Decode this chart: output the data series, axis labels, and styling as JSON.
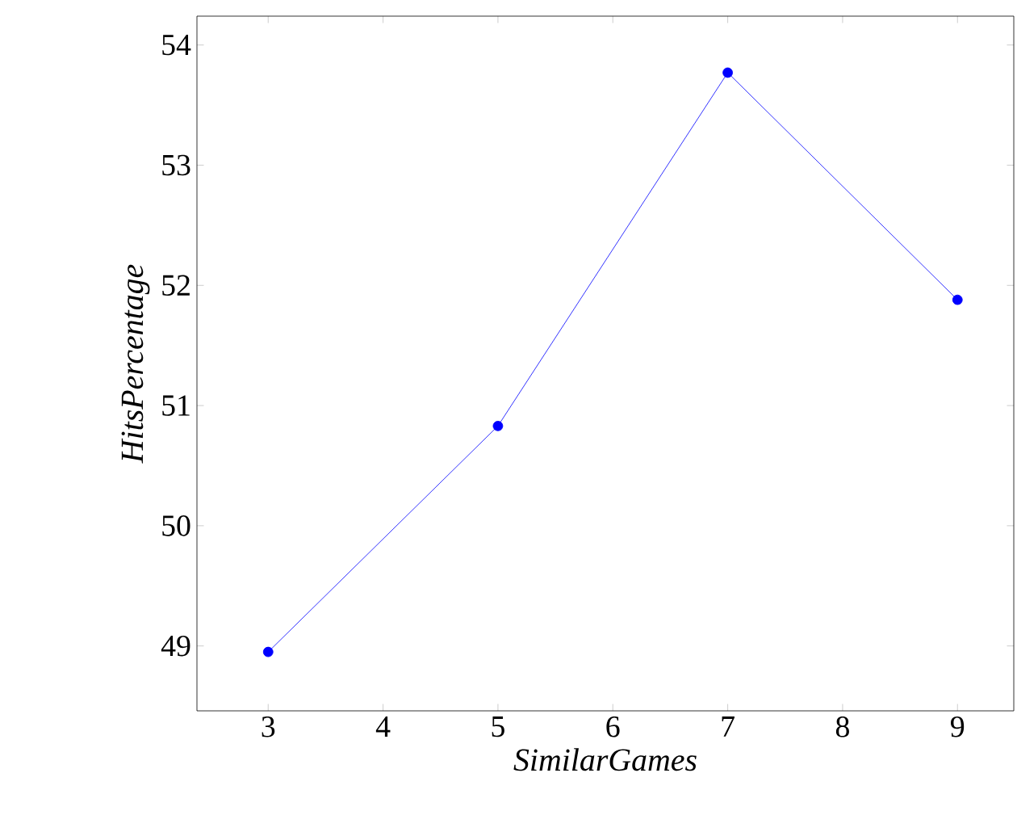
{
  "chart_data": {
    "type": "line",
    "xlabel": "SimilarGames",
    "ylabel": "HitsPercentage",
    "x": [
      3,
      5,
      7,
      9
    ],
    "series": [
      {
        "color": "#0000ff",
        "values": [
          48.95,
          50.83,
          53.77,
          51.88
        ]
      }
    ],
    "xlim": [
      2.38,
      9.49
    ],
    "ylim": [
      48.46,
      54.24
    ],
    "xticks": [
      3,
      4,
      5,
      6,
      7,
      8,
      9
    ],
    "yticks": [
      49,
      50,
      51,
      52,
      53,
      54
    ],
    "marker": "circle",
    "line_style": "solid",
    "grid": false
  }
}
